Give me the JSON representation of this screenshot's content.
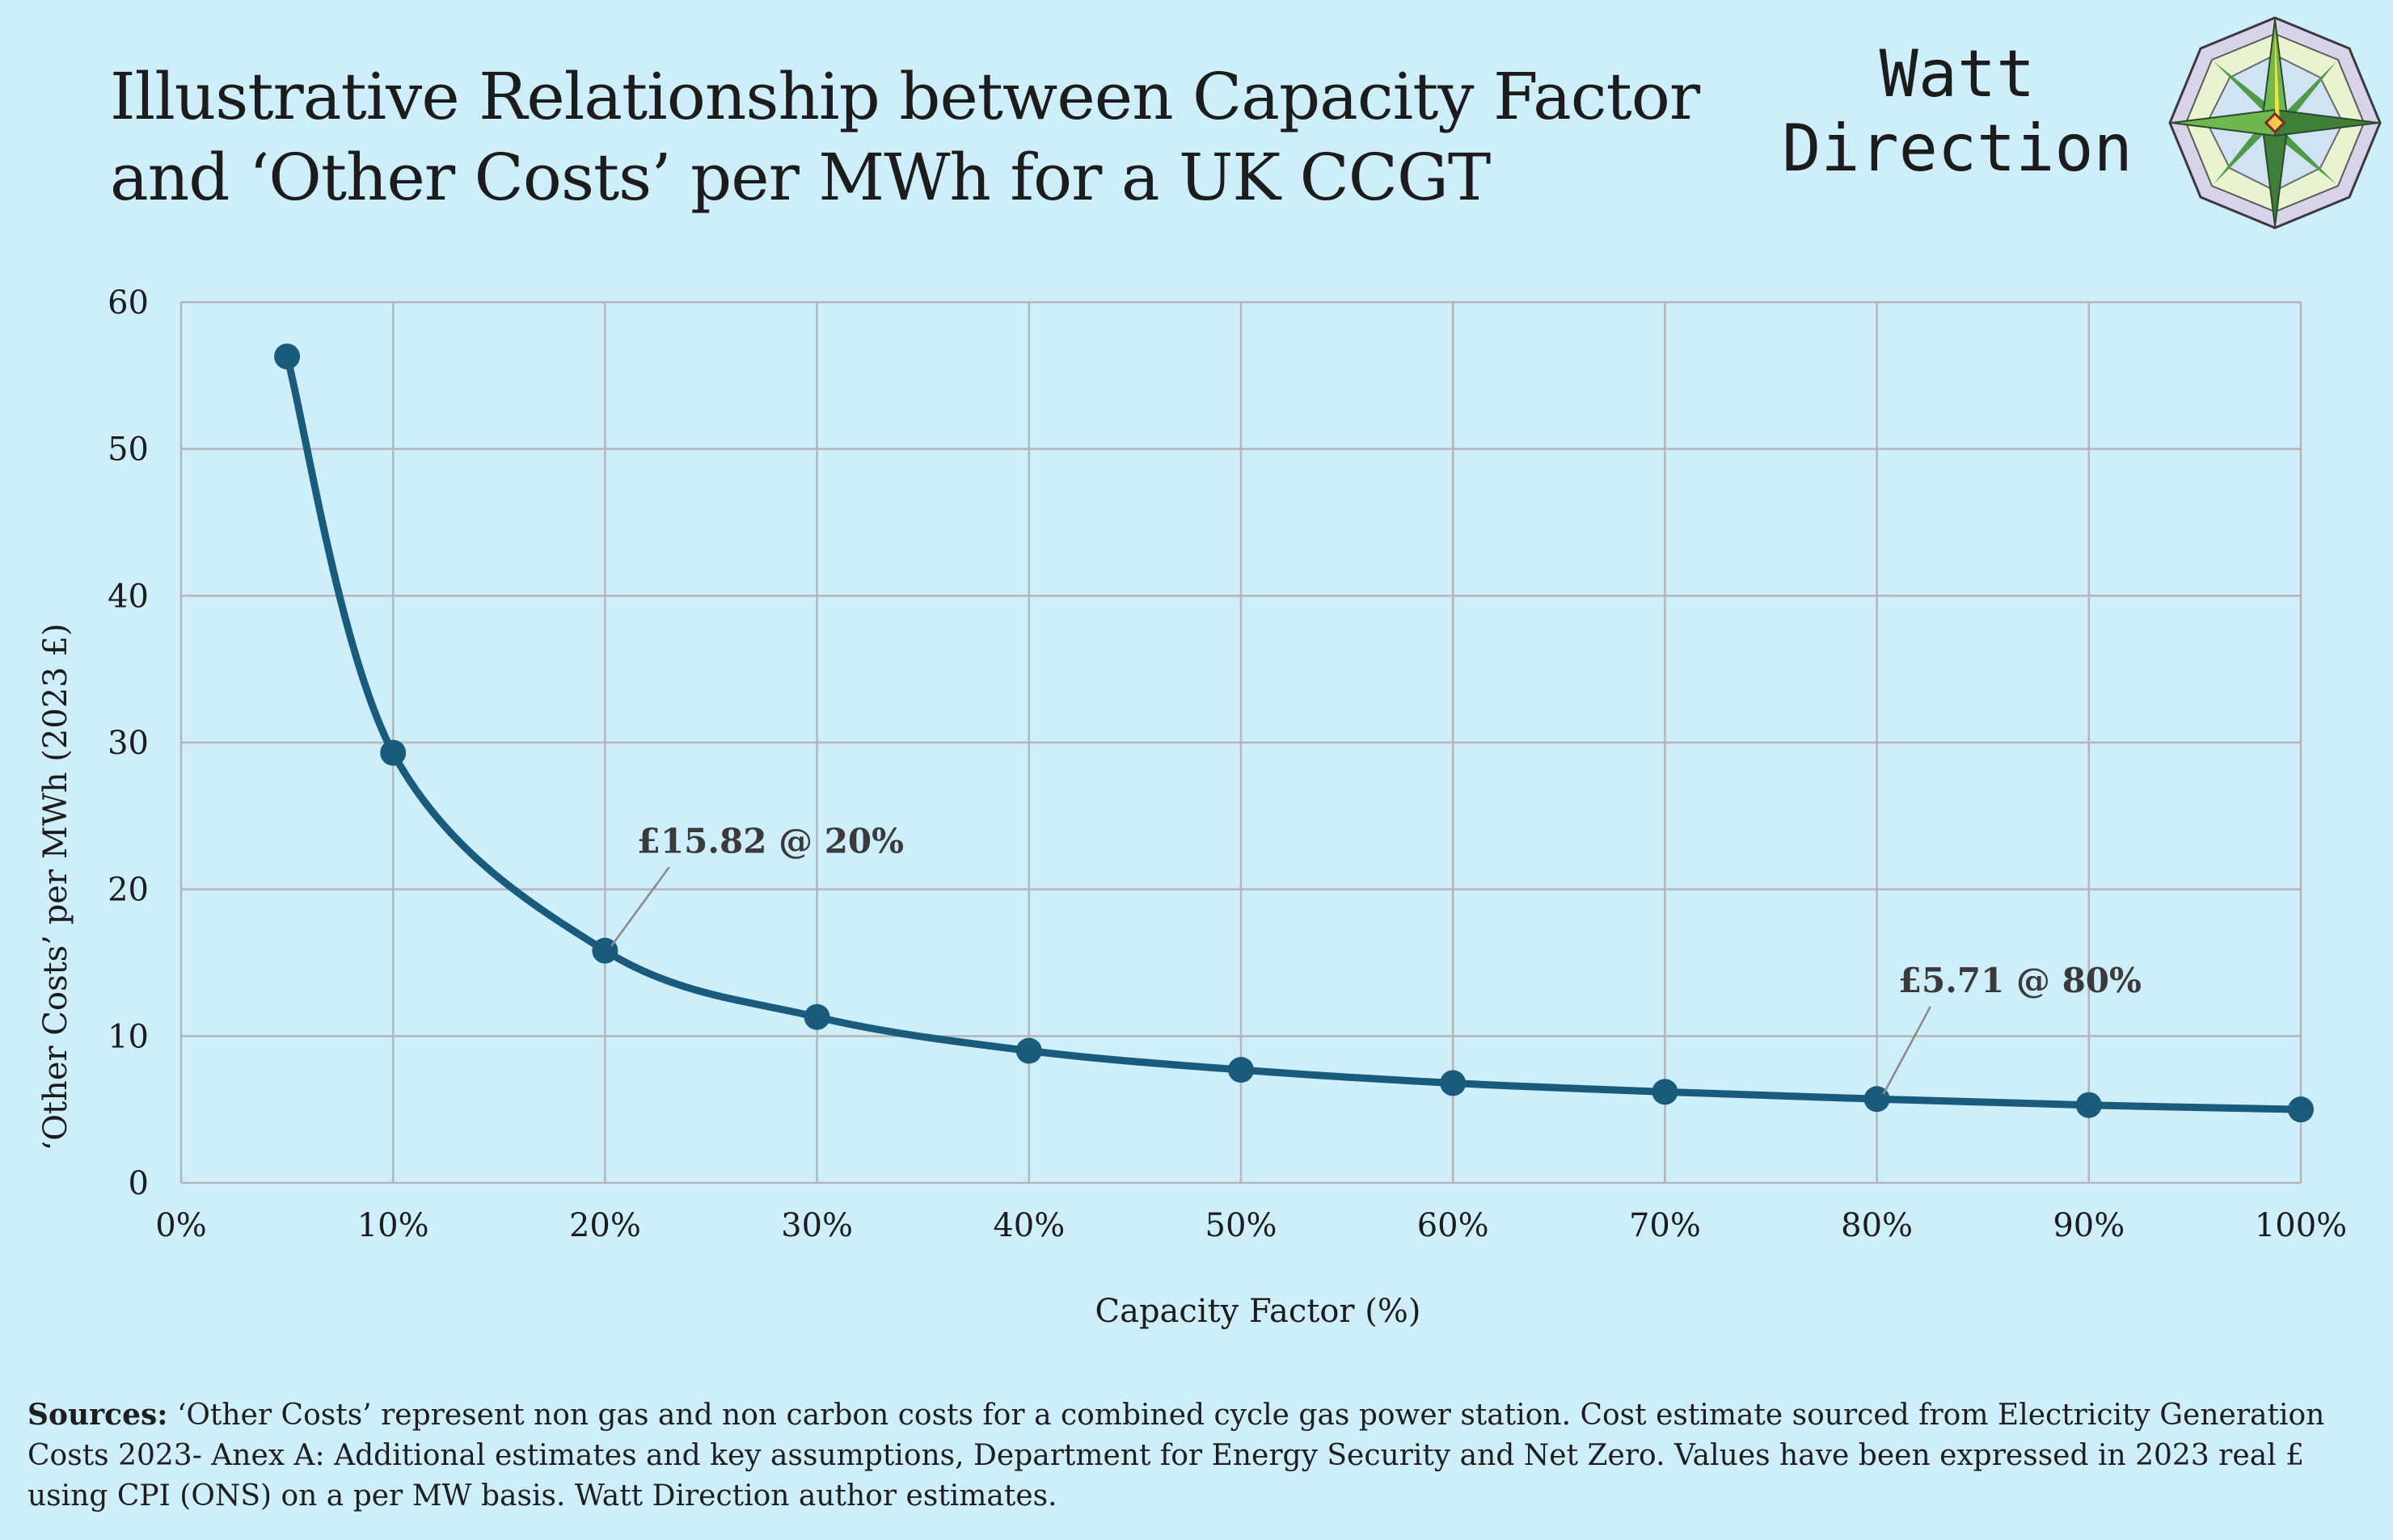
{
  "header": {
    "title_line1": "Illustrative Relationship between Capacity Factor",
    "title_line2": "and  ‘Other Costs’ per MWh for a UK CCGT",
    "brand_line1": "Watt",
    "brand_line2": "Direction",
    "logo_icon": "compass-rose-icon"
  },
  "chart_data": {
    "type": "line",
    "title": "Illustrative Relationship between Capacity Factor and  ‘Other Costs’ per MWh for a UK CCGT",
    "xlabel": "Capacity Factor (%)",
    "ylabel": "‘Other Costs’ per MWh (2023 £)",
    "xlim": [
      0,
      100
    ],
    "ylim": [
      0,
      60
    ],
    "x_ticks": [
      0,
      10,
      20,
      30,
      40,
      50,
      60,
      70,
      80,
      90,
      100
    ],
    "x_tick_labels": [
      "0%",
      "10%",
      "20%",
      "30%",
      "40%",
      "50%",
      "60%",
      "70%",
      "80%",
      "90%",
      "100%"
    ],
    "y_ticks": [
      0,
      10,
      20,
      30,
      40,
      50,
      60
    ],
    "y_tick_labels": [
      "0",
      "10",
      "20",
      "30",
      "40",
      "50",
      "60"
    ],
    "grid": true,
    "legend": "none",
    "series": [
      {
        "color": "#1a5b7c",
        "x": [
          5,
          10,
          20,
          30,
          40,
          50,
          60,
          70,
          80,
          90,
          100
        ],
        "y": [
          56.3,
          29.3,
          15.82,
          11.3,
          9.0,
          7.7,
          6.8,
          6.2,
          5.71,
          5.3,
          5.0
        ]
      }
    ],
    "annotations": [
      {
        "text": "£15.82 @ 20%",
        "x": 20,
        "y": 15.82,
        "text_x": 21.5,
        "text_y": 22.5
      },
      {
        "text": "£5.71 @ 80%",
        "x": 80,
        "y": 5.71,
        "text_x": 81,
        "text_y": 13
      }
    ]
  },
  "footer": {
    "sources_label": "Sources:",
    "sources_text": " ‘Other Costs’ represent non gas and non carbon costs for a combined cycle gas power station. Cost estimate sourced from Electricity Generation Costs 2023- Anex A: Additional estimates and key assumptions, Department for Energy Security and Net Zero. Values have been expressed in 2023 real £ using CPI (ONS) on a per MW basis. Watt Direction author estimates."
  },
  "colors": {
    "background": "#cdeefa",
    "line": "#1a5b7c",
    "grid": "#b5b5b5",
    "text": "#1c1c1c"
  }
}
